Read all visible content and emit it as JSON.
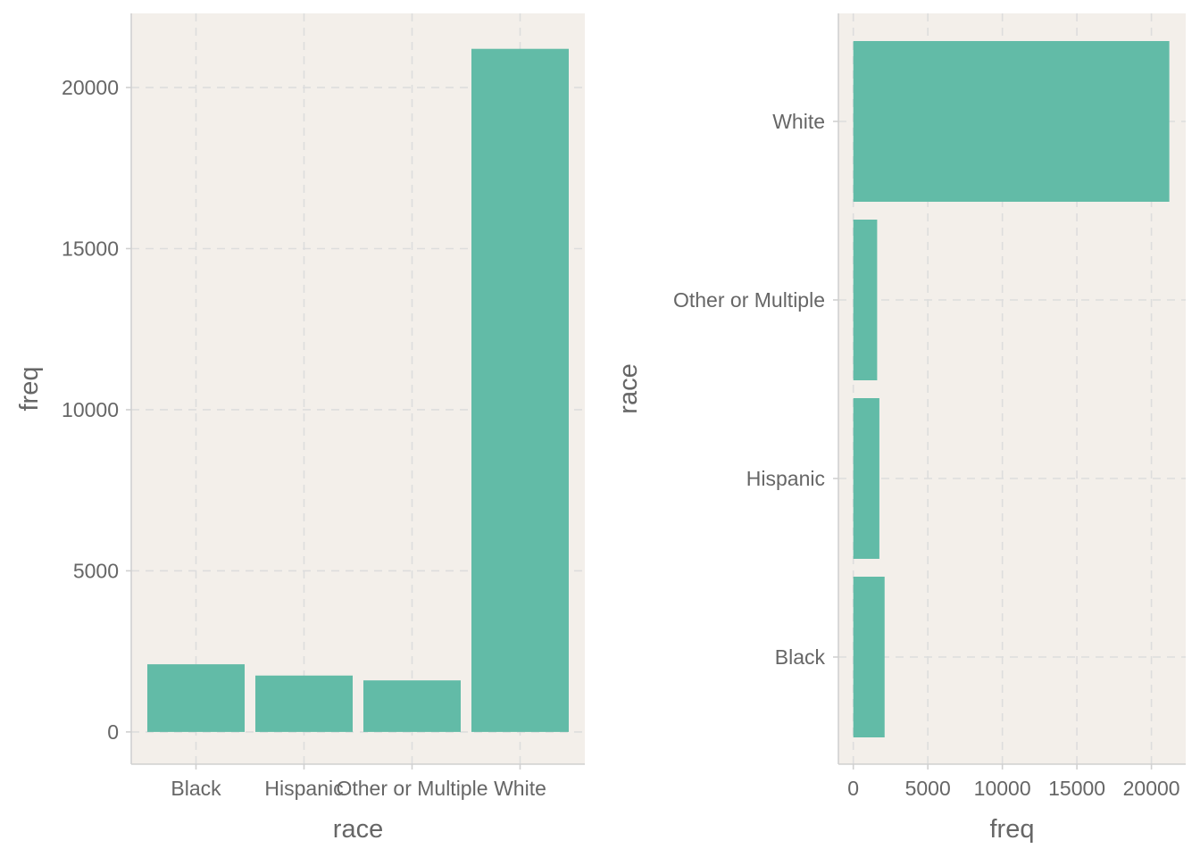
{
  "colors": {
    "panel_background": "#f3efea",
    "bar_fill": "#62bba7",
    "text": "#666666",
    "grid": "#dddddd"
  },
  "chart_data": [
    {
      "type": "bar",
      "orientation": "vertical",
      "categories": [
        "Black",
        "Hispanic",
        "Other or Multiple",
        "White"
      ],
      "values": [
        2100,
        1750,
        1600,
        21200
      ],
      "xlabel": "race",
      "ylabel": "freq",
      "ylim": [
        -1000,
        22300
      ],
      "yticks": [
        0,
        5000,
        10000,
        15000,
        20000
      ],
      "grid": true,
      "legend": "none"
    },
    {
      "type": "bar",
      "orientation": "horizontal",
      "categories": [
        "Black",
        "Hispanic",
        "Other or Multiple",
        "White"
      ],
      "values": [
        2100,
        1750,
        1600,
        21200
      ],
      "xlabel": "freq",
      "ylabel": "race",
      "xlim": [
        -1000,
        22300
      ],
      "xticks": [
        0,
        5000,
        10000,
        15000,
        20000
      ],
      "grid": true,
      "legend": "none"
    }
  ]
}
